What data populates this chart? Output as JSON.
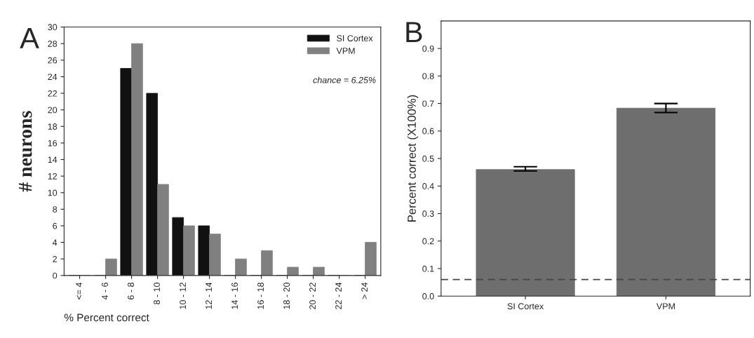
{
  "chart_data": [
    {
      "type": "bar",
      "categories": [
        "<= 4",
        "4 - 6",
        "6 - 8",
        "8 - 10",
        "10 - 12",
        "12 - 14",
        "14 - 16",
        "16 - 18",
        "18 - 20",
        "20 - 22",
        "22 - 24",
        "> 24"
      ],
      "series": [
        {
          "name": "SI Cortex",
          "color": "#111111",
          "values": [
            0,
            0,
            25,
            22,
            7,
            6,
            0,
            0,
            0,
            0,
            0,
            0
          ]
        },
        {
          "name": "VPM",
          "color": "#808080",
          "values": [
            0,
            2,
            28,
            11,
            6,
            5,
            2,
            3,
            1,
            1,
            0,
            4
          ]
        }
      ],
      "xlabel": "% Percent correct",
      "ylabel": "# neurons",
      "ylim": [
        0,
        30
      ],
      "yticks": [
        0,
        2,
        4,
        6,
        8,
        10,
        12,
        14,
        16,
        18,
        20,
        22,
        24,
        26,
        28,
        30
      ],
      "legend": "top right",
      "grid": false,
      "annotations": [
        "A",
        "chance = 6.25%"
      ]
    },
    {
      "type": "bar",
      "categories": [
        "SI Cortex",
        "VPM"
      ],
      "values": [
        0.46,
        0.683
      ],
      "colors": [
        "#6e6e6e",
        "#6e6e6e"
      ],
      "errors": [
        [
          0.455,
          0.47
        ],
        [
          0.667,
          0.7
        ]
      ],
      "ylabel": "Percent correct (X100%)",
      "ylim": [
        0,
        1.0
      ],
      "yticks": [
        {
          "value": 0.0,
          "label": "0.0"
        },
        0.1,
        0.2,
        0.3,
        0.4,
        0.5,
        0.6,
        0.7,
        0.8,
        0.9
      ],
      "ref_lines": [
        {
          "axis": "y",
          "value": 0.06,
          "line_style": "dashed",
          "color": "#444444"
        }
      ],
      "grid": false,
      "annotations": [
        "B"
      ]
    }
  ]
}
